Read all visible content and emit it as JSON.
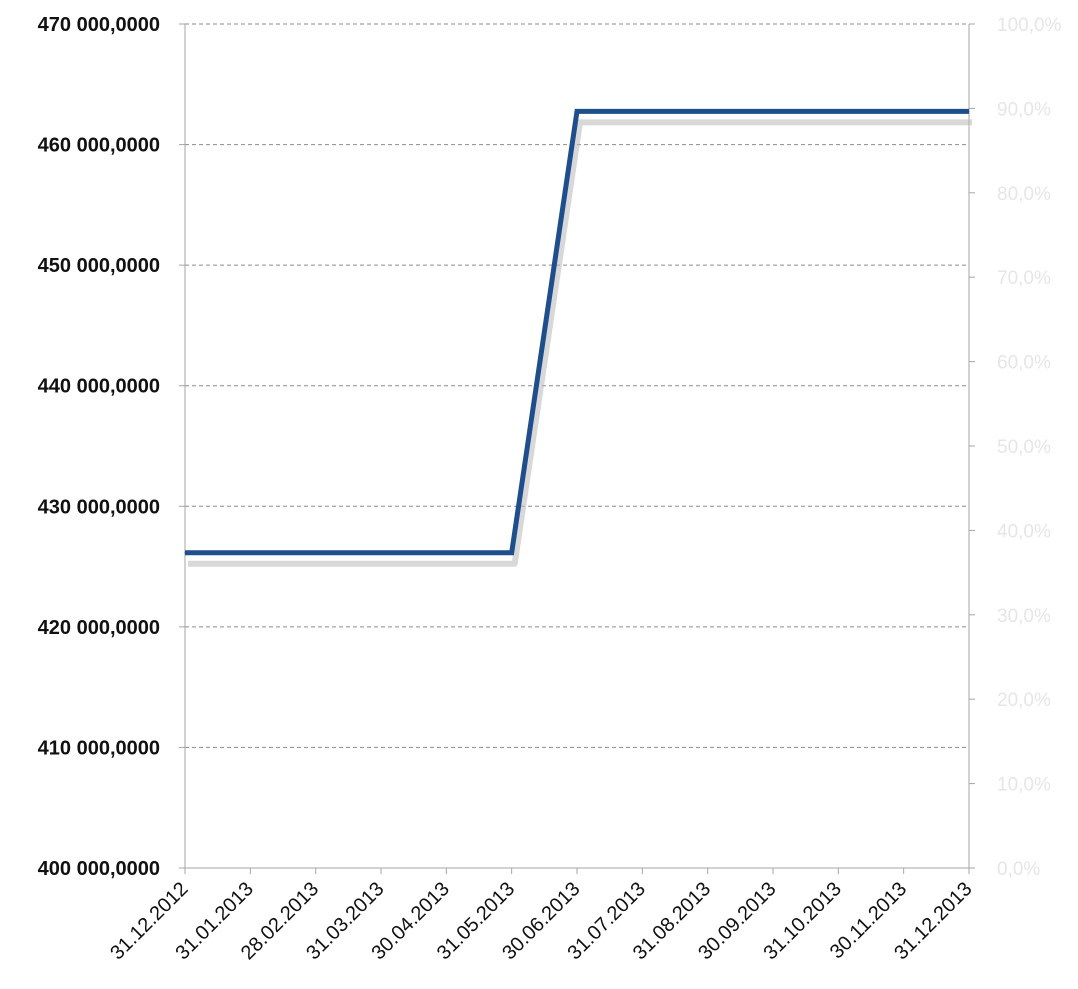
{
  "chart_data": {
    "type": "line",
    "title": "",
    "xlabel": "",
    "ylabel": "",
    "categories": [
      "31.12.2012",
      "31.01.2013",
      "28.02.2013",
      "31.03.2013",
      "30.04.2013",
      "31.05.2013",
      "30.06.2013",
      "31.07.2013",
      "31.08.2013",
      "30.09.2013",
      "31.10.2013",
      "30.11.2013",
      "31.12.2013"
    ],
    "series": [
      {
        "values": [
          426150000,
          426150000,
          426150000,
          426150000,
          426150000,
          426150000,
          462750000,
          462750000,
          462750000,
          462750000,
          462750000,
          462750000,
          462750000
        ]
      }
    ],
    "ylim": [
      400000000,
      470000000
    ],
    "y_ticks": [
      "400 000,0000",
      "410 000,0000",
      "420 000,0000",
      "430 000,0000",
      "440 000,0000",
      "450 000,0000",
      "460 000,0000",
      "470 000,0000"
    ],
    "y2lim": [
      0,
      100
    ],
    "y2_ticks": [
      "0,0%",
      "10,0%",
      "20,0%",
      "30,0%",
      "40,0%",
      "50,0%",
      "60,0%",
      "70,0%",
      "80,0%",
      "90,0%",
      "100,0%"
    ],
    "grid": true,
    "legend": "none",
    "colors": {
      "line": "#1f4e8c",
      "shadow": "#b8b8b8",
      "grid": "#8c8c8c",
      "axis": "#a6a6a6",
      "ytick": "#111111",
      "y2tick": "#e6e6e6"
    }
  }
}
